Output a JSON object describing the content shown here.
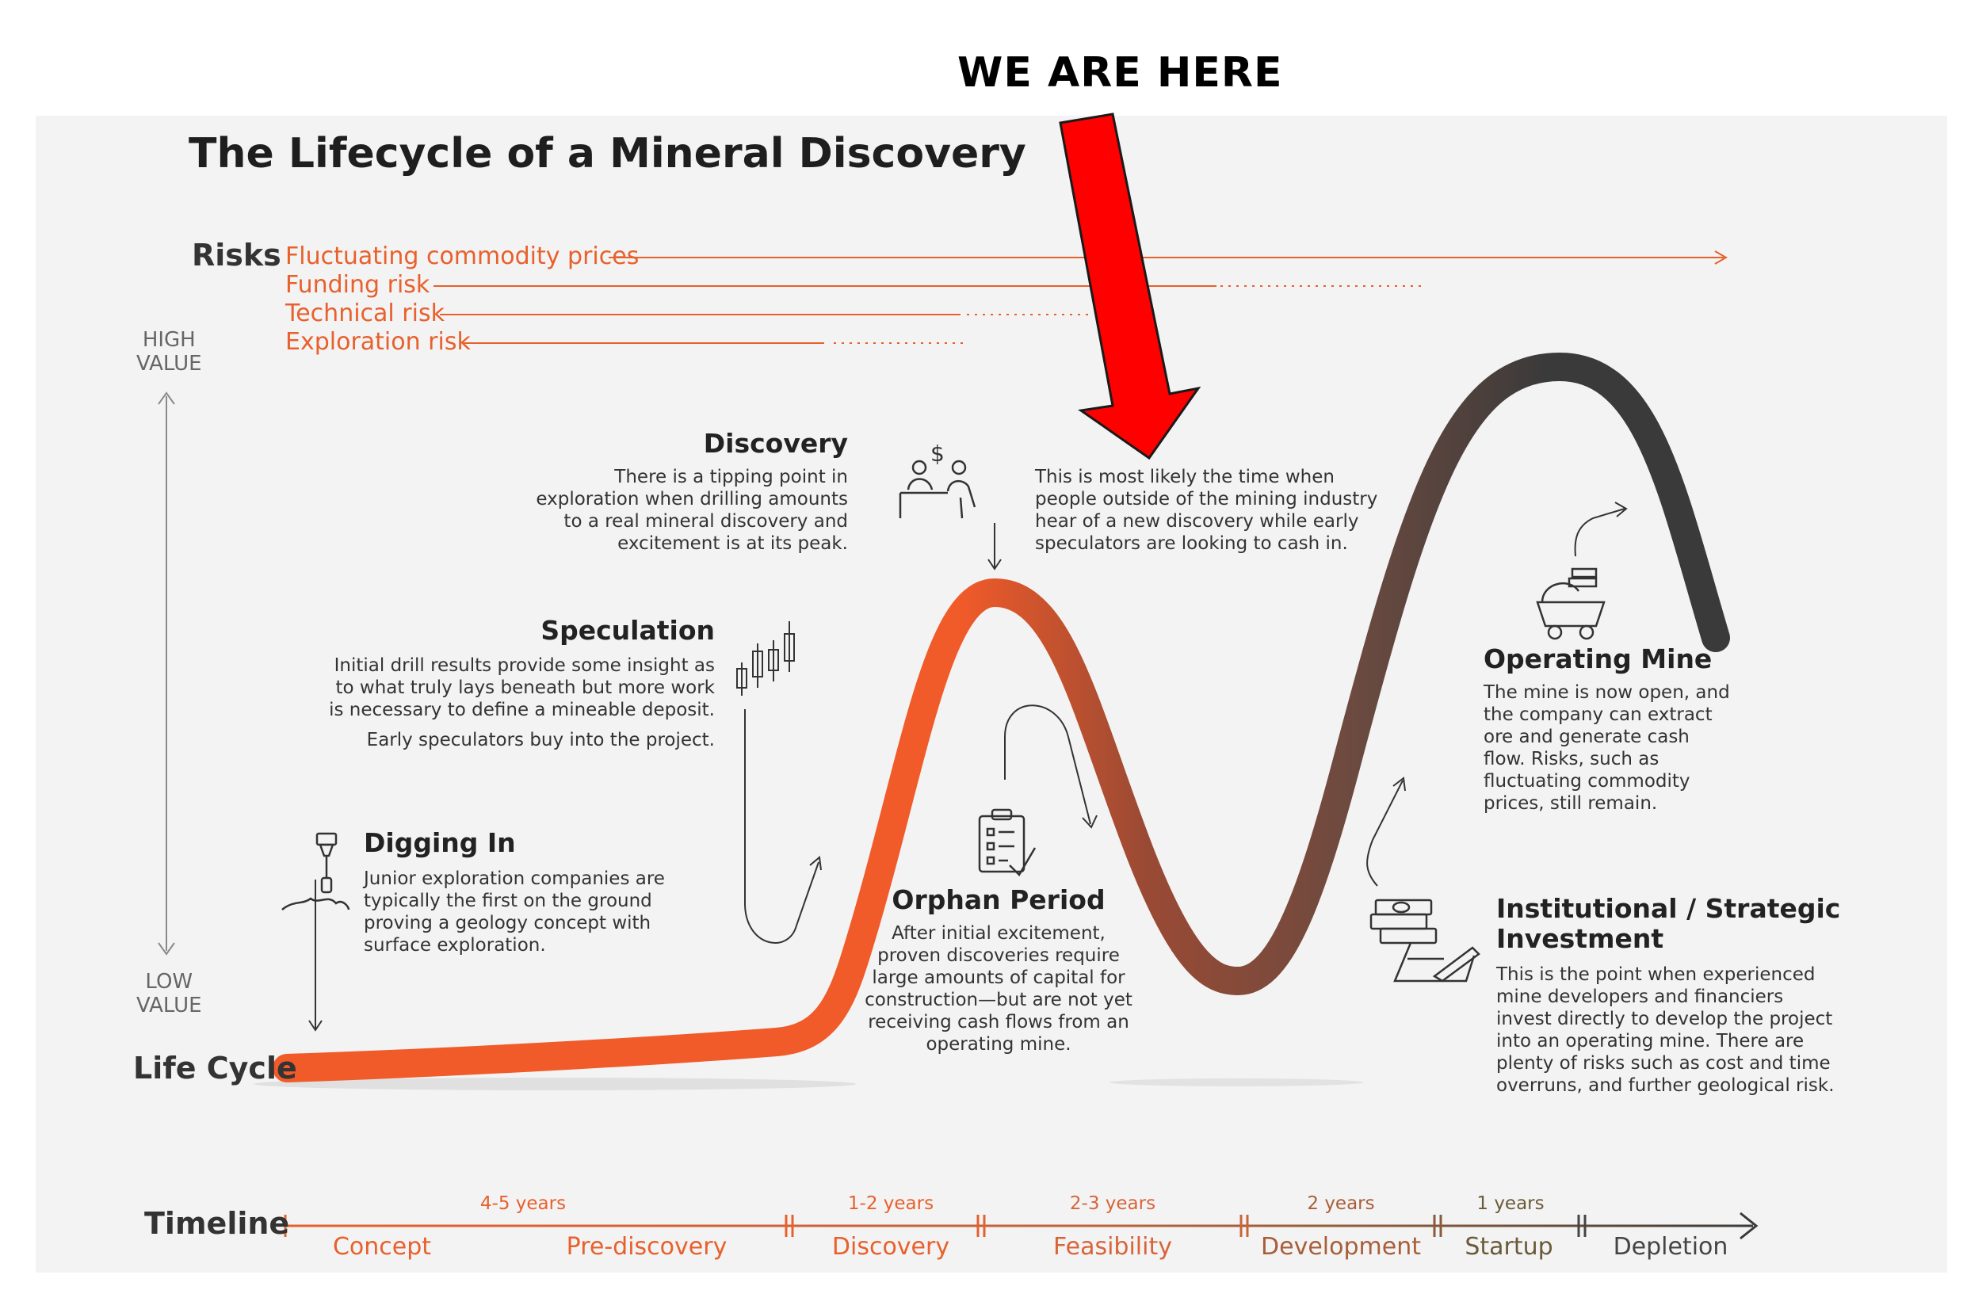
{
  "annotation": {
    "label": "WE ARE HERE"
  },
  "title": "The Lifecycle of a Mineral Discovery",
  "risks": {
    "label": "Risks",
    "items": [
      "Fluctuating commodity prices",
      "Funding risk",
      "Technical risk",
      "Exploration risk"
    ]
  },
  "value_axis": {
    "high": "HIGH\nVALUE",
    "low": "LOW\nVALUE"
  },
  "lifecycle_label": "Life Cycle",
  "stages": {
    "digging_in": {
      "heading": "Digging In",
      "body": "Junior exploration companies are\ntypically the first on the ground\nproving a geology concept with\nsurface exploration."
    },
    "speculation": {
      "heading": "Speculation",
      "body": "Initial drill results provide some insight as\nto what truly lays beneath but more work\nis necessary to define a mineable deposit.",
      "body2": "Early speculators buy into the project."
    },
    "discovery": {
      "heading": "Discovery",
      "body": "There is a tipping point in\nexploration when drilling amounts\nto a real mineral discovery and\nexcitement is at its peak."
    },
    "peak_note": {
      "body": "This is most likely the time when\npeople outside of the mining industry\nhear of a new discovery while early\nspeculators are looking to cash in."
    },
    "orphan_period": {
      "heading": "Orphan Period",
      "body": "After initial excitement,\nproven discoveries require\nlarge amounts of capital for\nconstruction—but are not yet\nreceiving cash flows from an\noperating mine."
    },
    "institutional": {
      "heading": "Institutional / Strategic\nInvestment",
      "body": "This is the point when experienced\nmine developers and financiers\ninvest directly to develop the project\ninto an operating mine. There are\nplenty of risks such as cost and time\noverruns, and further geological risk."
    },
    "operating_mine": {
      "heading": "Operating Mine",
      "body": "The mine is now open, and\nthe company can extract\nore and generate cash\nflow. Risks, such as\nfluctuating commodity\nprices, still remain."
    }
  },
  "timeline": {
    "label": "Timeline",
    "durations": [
      "4-5 years",
      "1-2 years",
      "2-3 years",
      "2 years",
      "1 years"
    ],
    "phases": [
      "Concept",
      "Pre-discovery",
      "Discovery",
      "Feasibility",
      "Development",
      "Startup",
      "Depletion"
    ]
  },
  "colors": {
    "accent": "#e8602c",
    "curve_start": "#f15a29",
    "curve_mid": "#8b4a38",
    "curve_end": "#3a3a3a",
    "arrow_red": "#ff0000"
  }
}
